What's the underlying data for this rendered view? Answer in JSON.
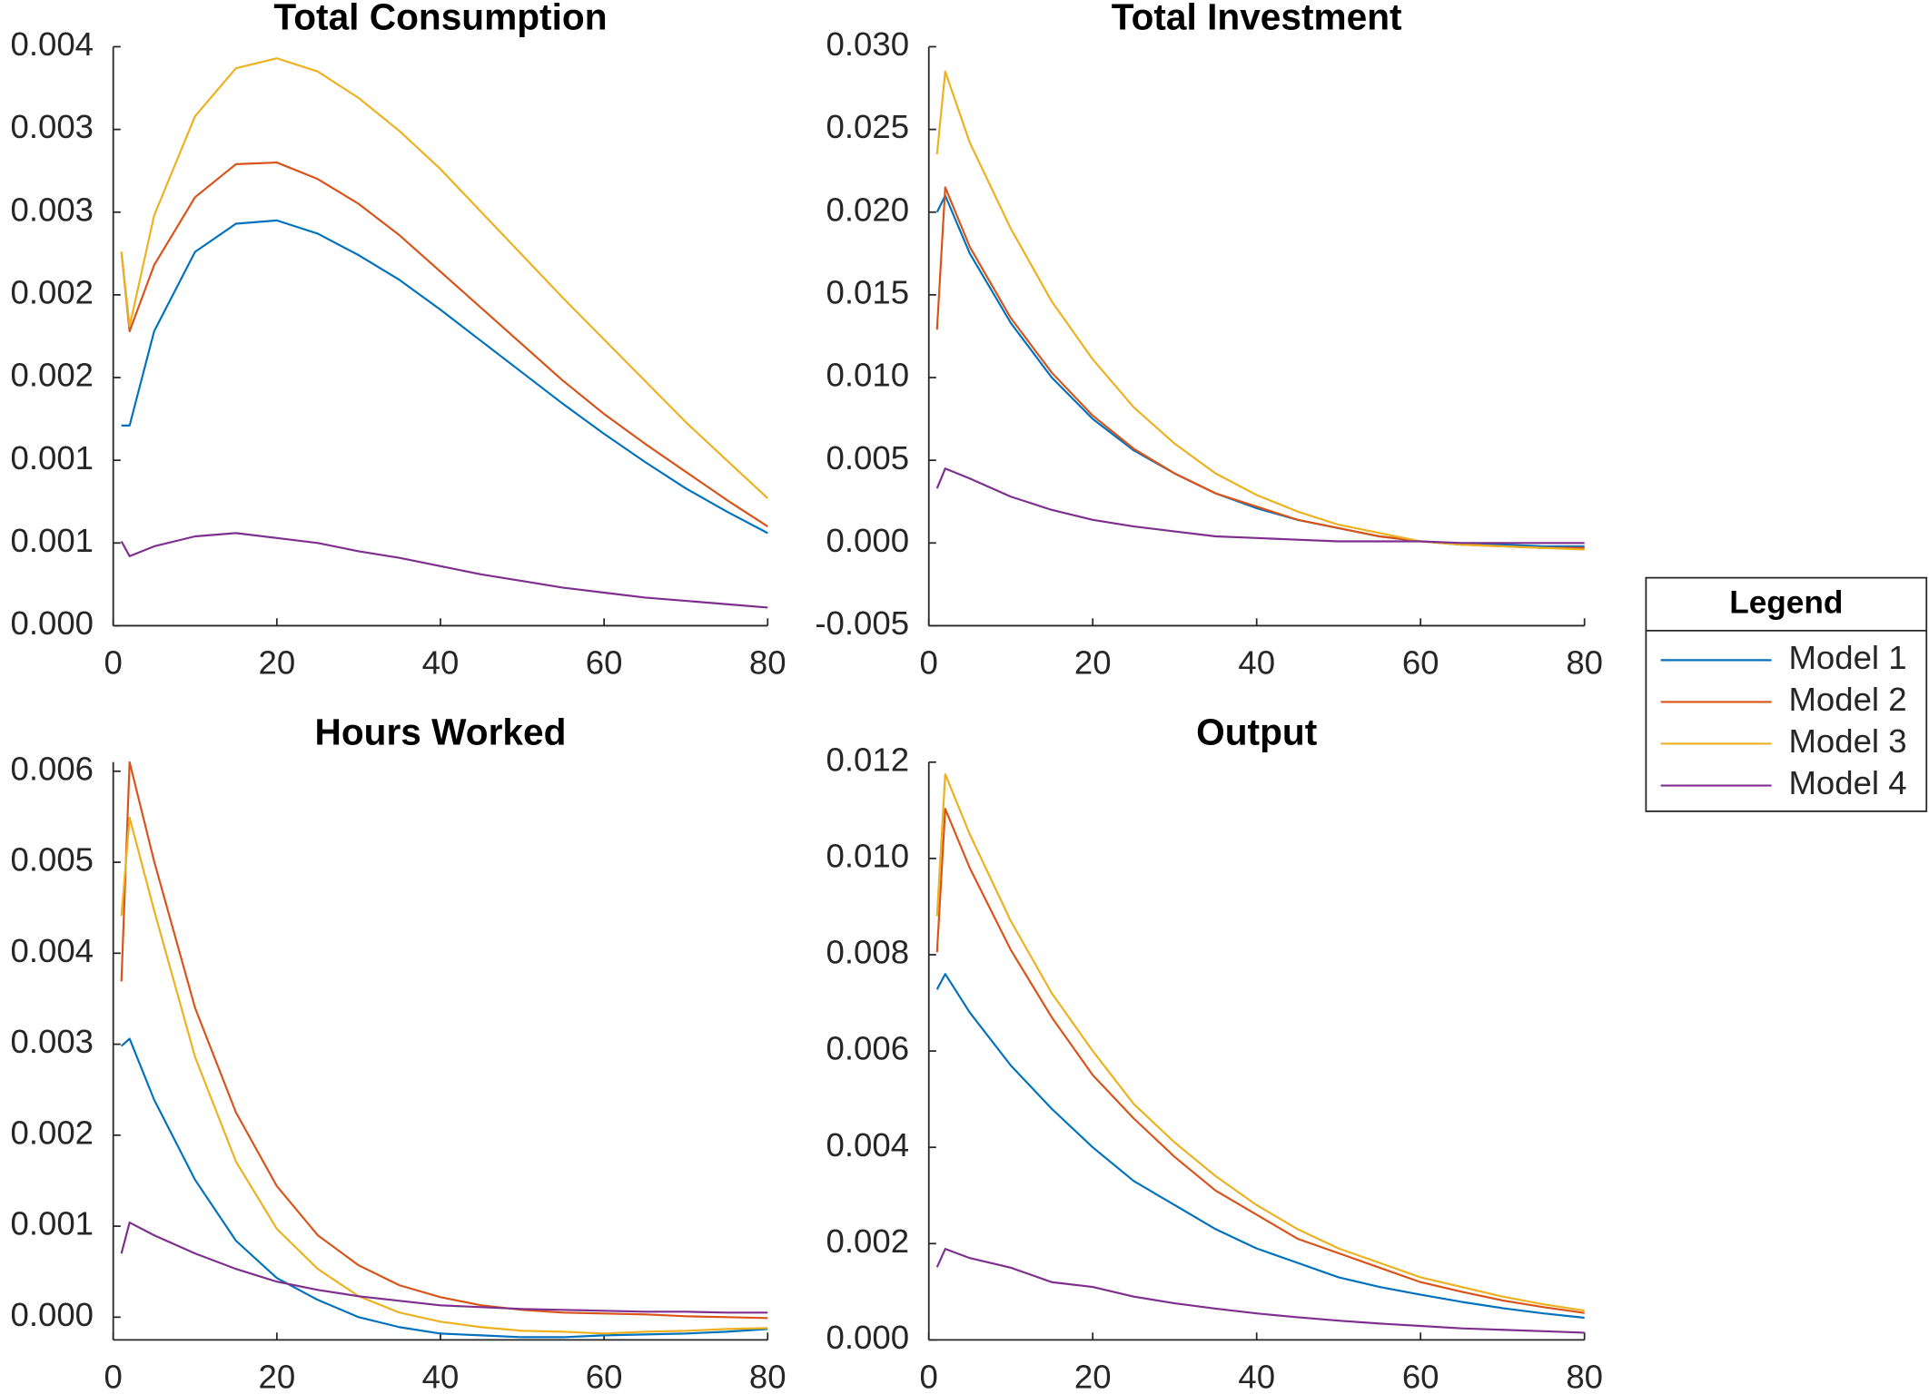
{
  "legend": {
    "title": "Legend"
  },
  "chart_data": [
    {
      "type": "line",
      "title": "Total Consumption",
      "x": [
        1,
        2,
        5,
        10,
        15,
        20,
        25,
        30,
        35,
        40,
        45,
        50,
        55,
        60,
        65,
        70,
        75,
        80
      ],
      "xlim": [
        0,
        80
      ],
      "xticks": [
        0,
        20,
        40,
        60,
        80
      ],
      "ylim": [
        0,
        0.0035
      ],
      "yticks": [
        {
          "value": 0,
          "label": "0.000"
        },
        {
          "value": 0.0005,
          "label": "0.001"
        },
        {
          "value": 0.001,
          "label": "0.001"
        },
        {
          "value": 0.0015,
          "label": "0.002"
        },
        {
          "value": 0.002,
          "label": "0.002"
        },
        {
          "value": 0.0025,
          "label": "0.003"
        },
        {
          "value": 0.003,
          "label": "0.003"
        },
        {
          "value": 0.0035,
          "label": "0.004"
        }
      ],
      "series": [
        {
          "name": "Model 1",
          "color": "#0072BD",
          "values": [
            0.00121,
            0.00121,
            0.00178,
            0.00226,
            0.00243,
            0.00245,
            0.00237,
            0.00224,
            0.00209,
            0.00191,
            0.00172,
            0.00153,
            0.00134,
            0.00116,
            0.00099,
            0.00083,
            0.00069,
            0.00056
          ]
        },
        {
          "name": "Model 2",
          "color": "#D95319",
          "values": [
            0.00226,
            0.00178,
            0.00218,
            0.00259,
            0.00279,
            0.0028,
            0.0027,
            0.00255,
            0.00236,
            0.00214,
            0.00192,
            0.0017,
            0.00148,
            0.00128,
            0.0011,
            0.00093,
            0.00076,
            0.0006
          ]
        },
        {
          "name": "Model 3",
          "color": "#EDB120",
          "values": [
            0.00226,
            0.00181,
            0.00248,
            0.00308,
            0.00337,
            0.00343,
            0.00335,
            0.00319,
            0.00299,
            0.00276,
            0.0025,
            0.00224,
            0.00198,
            0.00173,
            0.00148,
            0.00123,
            0.001,
            0.00077
          ]
        },
        {
          "name": "Model 4",
          "color": "#7E2F8E",
          "values": [
            0.00051,
            0.00042,
            0.00048,
            0.00054,
            0.00056,
            0.00053,
            0.0005,
            0.00045,
            0.00041,
            0.00036,
            0.00031,
            0.00027,
            0.00023,
            0.0002,
            0.00017,
            0.00015,
            0.00013,
            0.00011
          ]
        }
      ]
    },
    {
      "type": "line",
      "title": "Total Investment",
      "x": [
        1,
        2,
        5,
        10,
        15,
        20,
        25,
        30,
        35,
        40,
        45,
        50,
        55,
        60,
        65,
        70,
        75,
        80
      ],
      "xlim": [
        0,
        80
      ],
      "xticks": [
        0,
        20,
        40,
        60,
        80
      ],
      "ylim": [
        -0.005,
        0.03
      ],
      "yticks": [
        {
          "value": -0.005,
          "label": "-0.005"
        },
        {
          "value": 0,
          "label": "0.000"
        },
        {
          "value": 0.005,
          "label": "0.005"
        },
        {
          "value": 0.01,
          "label": "0.010"
        },
        {
          "value": 0.015,
          "label": "0.015"
        },
        {
          "value": 0.02,
          "label": "0.020"
        },
        {
          "value": 0.025,
          "label": "0.025"
        },
        {
          "value": 0.03,
          "label": "0.030"
        }
      ],
      "series": [
        {
          "name": "Model 1",
          "color": "#0072BD",
          "values": [
            0.02,
            0.021,
            0.0175,
            0.0133,
            0.01,
            0.0075,
            0.0056,
            0.0042,
            0.003,
            0.0021,
            0.0014,
            0.0009,
            0.0004,
            0.0001,
            -0.0001,
            -0.0001,
            -0.0002,
            -0.0002
          ]
        },
        {
          "name": "Model 2",
          "color": "#D95319",
          "values": [
            0.0129,
            0.0215,
            0.0179,
            0.0136,
            0.0103,
            0.0077,
            0.0057,
            0.0042,
            0.003,
            0.0022,
            0.0014,
            0.0009,
            0.0004,
            0.0001,
            -0.0001,
            -0.0002,
            -0.0003,
            -0.0003
          ]
        },
        {
          "name": "Model 3",
          "color": "#EDB120",
          "values": [
            0.0235,
            0.0285,
            0.0242,
            0.019,
            0.0146,
            0.0111,
            0.0082,
            0.006,
            0.0042,
            0.0029,
            0.0019,
            0.0011,
            0.0006,
            0.0001,
            -0.0001,
            -0.0002,
            -0.0003,
            -0.0004
          ]
        },
        {
          "name": "Model 4",
          "color": "#7E2F8E",
          "values": [
            0.0033,
            0.0045,
            0.0039,
            0.0028,
            0.002,
            0.0014,
            0.001,
            0.0007,
            0.0004,
            0.0003,
            0.0002,
            0.0001,
            0.0001,
            0.0001,
            0,
            0,
            0,
            0
          ]
        }
      ]
    },
    {
      "type": "line",
      "title": "Hours Worked",
      "x": [
        1,
        2,
        5,
        10,
        15,
        20,
        25,
        30,
        35,
        40,
        45,
        50,
        55,
        60,
        65,
        70,
        75,
        80
      ],
      "xlim": [
        0,
        80
      ],
      "xticks": [
        0,
        20,
        40,
        60,
        80
      ],
      "ylim": [
        -0.00025,
        0.0061
      ],
      "yticks": [
        {
          "value": 0,
          "label": "0.000"
        },
        {
          "value": 0.001,
          "label": "0.001"
        },
        {
          "value": 0.002,
          "label": "0.002"
        },
        {
          "value": 0.003,
          "label": "0.003"
        },
        {
          "value": 0.004,
          "label": "0.004"
        },
        {
          "value": 0.005,
          "label": "0.005"
        },
        {
          "value": 0.006,
          "label": "0.006"
        }
      ],
      "series": [
        {
          "name": "Model 1",
          "color": "#0072BD",
          "values": [
            0.00298,
            0.00306,
            0.00239,
            0.00151,
            0.00084,
            0.00043,
            0.00019,
            0,
            -0.00011,
            -0.00018,
            -0.0002,
            -0.00022,
            -0.00022,
            -0.0002,
            -0.00019,
            -0.00018,
            -0.00016,
            -0.00013
          ]
        },
        {
          "name": "Model 2",
          "color": "#D95319",
          "values": [
            0.00369,
            0.0061,
            0.00501,
            0.0034,
            0.00225,
            0.00144,
            0.0009,
            0.00057,
            0.00035,
            0.00022,
            0.00013,
            8e-05,
            5e-05,
            4e-05,
            3e-05,
            1e-05,
            0,
            -1e-05
          ]
        },
        {
          "name": "Model 3",
          "color": "#EDB120",
          "values": [
            0.00441,
            0.00549,
            0.00447,
            0.00286,
            0.00171,
            0.00097,
            0.00053,
            0.00023,
            5e-05,
            -5e-05,
            -0.00011,
            -0.00015,
            -0.00016,
            -0.00018,
            -0.00016,
            -0.00015,
            -0.00013,
            -0.00012
          ]
        },
        {
          "name": "Model 4",
          "color": "#7E2F8E",
          "values": [
            0.0007,
            0.00104,
            0.0009,
            0.0007,
            0.00053,
            0.00039,
            0.0003,
            0.00023,
            0.00018,
            0.00013,
            0.00011,
            9e-05,
            8e-05,
            7e-05,
            6e-05,
            6e-05,
            5e-05,
            5e-05
          ]
        }
      ]
    },
    {
      "type": "line",
      "title": "Output",
      "x": [
        1,
        2,
        5,
        10,
        15,
        20,
        25,
        30,
        35,
        40,
        45,
        50,
        55,
        60,
        65,
        70,
        75,
        80
      ],
      "xlim": [
        0,
        80
      ],
      "xticks": [
        0,
        20,
        40,
        60,
        80
      ],
      "ylim": [
        0,
        0.012
      ],
      "yticks": [
        {
          "value": 0,
          "label": "0.000"
        },
        {
          "value": 0.002,
          "label": "0.002"
        },
        {
          "value": 0.004,
          "label": "0.004"
        },
        {
          "value": 0.006,
          "label": "0.006"
        },
        {
          "value": 0.008,
          "label": "0.008"
        },
        {
          "value": 0.01,
          "label": "0.010"
        },
        {
          "value": 0.012,
          "label": "0.012"
        }
      ],
      "series": [
        {
          "name": "Model 1",
          "color": "#0072BD",
          "values": [
            0.00728,
            0.0076,
            0.0068,
            0.0057,
            0.0048,
            0.004,
            0.0033,
            0.0028,
            0.0023,
            0.0019,
            0.0016,
            0.0013,
            0.0011,
            0.00094,
            0.00079,
            0.00066,
            0.00055,
            0.00046
          ]
        },
        {
          "name": "Model 2",
          "color": "#D95319",
          "values": [
            0.00805,
            0.01103,
            0.0098,
            0.0081,
            0.0067,
            0.0055,
            0.0046,
            0.0038,
            0.0031,
            0.0026,
            0.0021,
            0.0018,
            0.0015,
            0.0012,
            0.001,
            0.00082,
            0.00068,
            0.00056
          ]
        },
        {
          "name": "Model 3",
          "color": "#EDB120",
          "values": [
            0.0088,
            0.01175,
            0.0105,
            0.0087,
            0.0072,
            0.006,
            0.0049,
            0.0041,
            0.0034,
            0.0028,
            0.0023,
            0.0019,
            0.0016,
            0.0013,
            0.0011,
            0.0009,
            0.00074,
            0.00061
          ]
        },
        {
          "name": "Model 4",
          "color": "#7E2F8E",
          "values": [
            0.00151,
            0.00189,
            0.0017,
            0.0015,
            0.0012,
            0.0011,
            0.0009,
            0.00076,
            0.00065,
            0.00055,
            0.00047,
            0.0004,
            0.00034,
            0.00029,
            0.00024,
            0.00021,
            0.00018,
            0.00015
          ]
        }
      ]
    }
  ]
}
